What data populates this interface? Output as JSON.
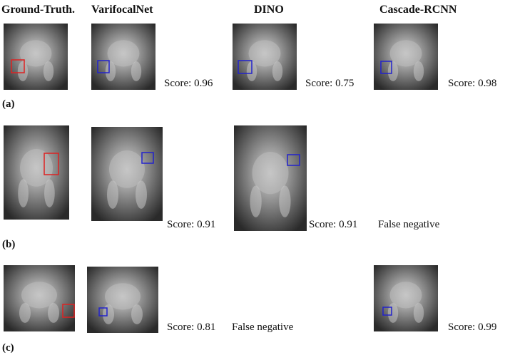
{
  "headers": [
    "Ground-Truth.",
    "VarifocalNet",
    "DINO",
    "Cascade-RCNN"
  ],
  "rows": [
    {
      "label": "(a)",
      "results": [
        "Score: 0.96",
        "Score: 0.75",
        "Score: 0.98"
      ]
    },
    {
      "label": "(b)",
      "results": [
        "Score: 0.91",
        "Score: 0.91",
        "False negative"
      ]
    },
    {
      "label": "(c)",
      "results": [
        "Score: 0.81",
        "False negative",
        "Score: 0.99"
      ]
    }
  ]
}
